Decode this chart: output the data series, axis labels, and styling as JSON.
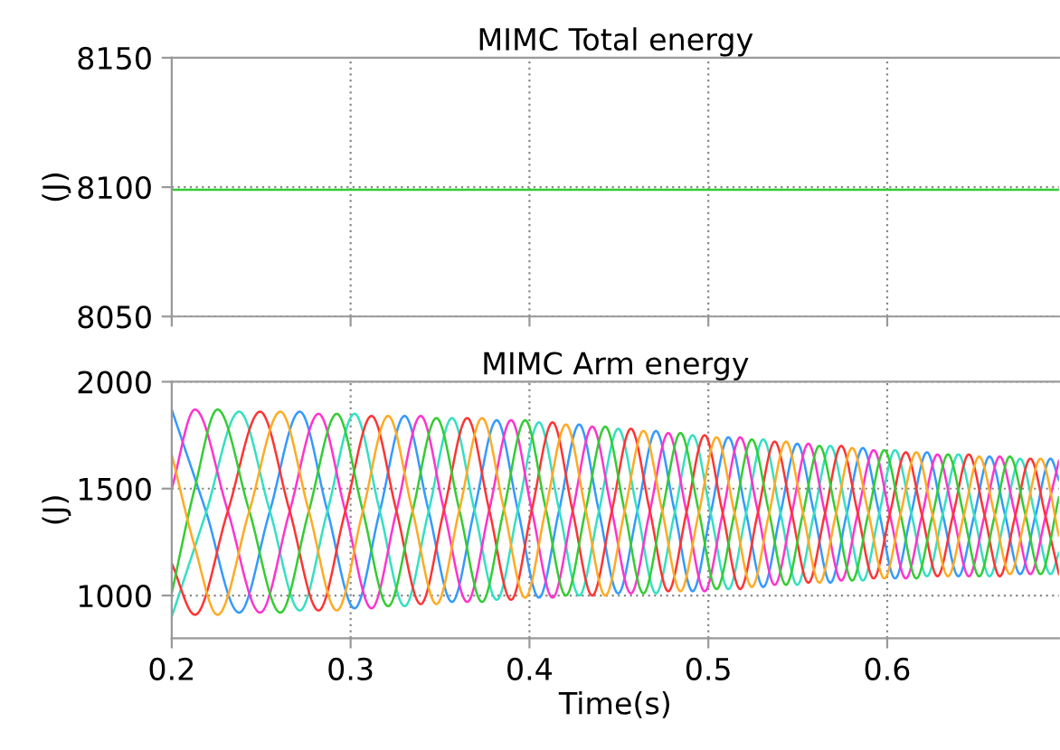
{
  "chart_data": [
    {
      "type": "line",
      "title": "MIMC Total energy",
      "ylabel": "(J)",
      "xlim": [
        0.2,
        0.696
      ],
      "xticks": [
        0.2,
        0.3,
        0.4,
        0.5,
        0.6
      ],
      "ylim": [
        8050,
        8150
      ],
      "yticks": [
        8050,
        8100,
        8150
      ],
      "grid": true,
      "tick_labels": "y",
      "series": [
        {
          "color": "#33cc33",
          "x": [
            0.2,
            0.3,
            0.4,
            0.5,
            0.6,
            0.696
          ],
          "values": [
            8099,
            8099,
            8099,
            8099,
            8099,
            8099
          ]
        }
      ]
    },
    {
      "type": "line",
      "title": "MIMC Arm energy",
      "xlabel": "Time(s)",
      "ylabel": "(J)",
      "xlim": [
        0.2,
        0.696
      ],
      "xticks": [
        0.2,
        0.3,
        0.4,
        0.5,
        0.6
      ],
      "ylim": [
        800,
        2000
      ],
      "yticks": [
        1000,
        1500,
        2000
      ],
      "grid": true,
      "series": [
        {
          "color": "#3399ff",
          "x": [
            0.2,
            0.2189,
            0.2377,
            0.2547,
            0.2716,
            0.2869,
            0.3022,
            0.3162,
            0.3302,
            0.3435,
            0.3567,
            0.3692,
            0.3817,
            0.3935,
            0.4053,
            0.4166,
            0.4278,
            0.4387,
            0.4496,
            0.4602,
            0.4707,
            0.481,
            0.4912,
            0.5012,
            0.5112,
            0.521,
            0.5307,
            0.5402,
            0.5497,
            0.559,
            0.5682,
            0.5773,
            0.5864,
            0.5954,
            0.6044,
            0.6133,
            0.6222,
            0.631,
            0.6398,
            0.6485,
            0.6572,
            0.6658,
            0.6743,
            0.6828,
            0.6913,
            0.696
          ],
          "values": [
            1870,
            1400,
            920,
            1390,
            1860,
            1400,
            940,
            1390,
            1840,
            1400,
            970,
            1400,
            1820,
            1400,
            990,
            1400,
            1800,
            1400,
            1010,
            1390,
            1770,
            1400,
            1020,
            1380,
            1740,
            1390,
            1040,
            1380,
            1710,
            1390,
            1060,
            1380,
            1690,
            1390,
            1080,
            1380,
            1670,
            1380,
            1090,
            1370,
            1650,
            1380,
            1100,
            1370,
            1640,
            1540
          ]
        },
        {
          "color": "#33e0c0",
          "x": [
            0.2,
            0.2189,
            0.2377,
            0.2547,
            0.2716,
            0.2869,
            0.3022,
            0.3162,
            0.3302,
            0.3435,
            0.3567,
            0.3692,
            0.3817,
            0.3935,
            0.4053,
            0.4166,
            0.4278,
            0.4387,
            0.4496,
            0.4602,
            0.4707,
            0.481,
            0.4912,
            0.5012,
            0.5112,
            0.521,
            0.5307,
            0.5402,
            0.5497,
            0.559,
            0.5682,
            0.5773,
            0.5864,
            0.5954,
            0.6044,
            0.6133,
            0.6222,
            0.631,
            0.6398,
            0.6485,
            0.6572,
            0.6658,
            0.6743,
            0.6828,
            0.6913,
            0.696
          ],
          "values": [
            900,
            1380,
            1860,
            1400,
            930,
            1390,
            1850,
            1400,
            950,
            1390,
            1830,
            1400,
            980,
            1400,
            1810,
            1400,
            1000,
            1390,
            1780,
            1400,
            1010,
            1380,
            1750,
            1390,
            1030,
            1380,
            1730,
            1390,
            1050,
            1380,
            1700,
            1390,
            1070,
            1380,
            1680,
            1390,
            1090,
            1380,
            1660,
            1380,
            1090,
            1370,
            1640,
            1370,
            1100,
            1200
          ]
        },
        {
          "color": "#ff33cc",
          "x": [
            0.2,
            0.213,
            0.2312,
            0.2494,
            0.2658,
            0.2821,
            0.2969,
            0.3117,
            0.3255,
            0.3392,
            0.3522,
            0.3652,
            0.3775,
            0.3897,
            0.4013,
            0.4129,
            0.424,
            0.4351,
            0.4459,
            0.4567,
            0.4672,
            0.4776,
            0.4878,
            0.4979,
            0.5079,
            0.5178,
            0.5275,
            0.5371,
            0.5465,
            0.5559,
            0.5651,
            0.5743,
            0.5834,
            0.5924,
            0.6014,
            0.6104,
            0.6193,
            0.6281,
            0.6369,
            0.6456,
            0.6543,
            0.6629,
            0.6715,
            0.68,
            0.6885,
            0.696
          ],
          "values": [
            1500,
            1870,
            1400,
            920,
            1390,
            1850,
            1400,
            940,
            1390,
            1840,
            1400,
            970,
            1400,
            1820,
            1400,
            990,
            1390,
            1790,
            1400,
            1010,
            1390,
            1760,
            1390,
            1020,
            1380,
            1740,
            1400,
            1050,
            1380,
            1710,
            1390,
            1070,
            1380,
            1680,
            1380,
            1080,
            1370,
            1660,
            1380,
            1090,
            1370,
            1650,
            1380,
            1100,
            1370,
            1630
          ]
        },
        {
          "color": "#ff3333",
          "x": [
            0.2,
            0.213,
            0.2312,
            0.2494,
            0.2658,
            0.2821,
            0.2969,
            0.3117,
            0.3255,
            0.3392,
            0.3522,
            0.3652,
            0.3775,
            0.3897,
            0.4013,
            0.4129,
            0.424,
            0.4351,
            0.4459,
            0.4567,
            0.4672,
            0.4776,
            0.4878,
            0.4979,
            0.5079,
            0.5178,
            0.5275,
            0.5371,
            0.5465,
            0.5559,
            0.5651,
            0.5743,
            0.5834,
            0.5924,
            0.6014,
            0.6104,
            0.6193,
            0.6281,
            0.6369,
            0.6456,
            0.6543,
            0.6629,
            0.6715,
            0.68,
            0.6885,
            0.696
          ],
          "values": [
            1150,
            910,
            1390,
            1860,
            1400,
            930,
            1390,
            1840,
            1400,
            960,
            1400,
            1830,
            1400,
            980,
            1400,
            1810,
            1400,
            1000,
            1390,
            1780,
            1400,
            1020,
            1390,
            1750,
            1390,
            1030,
            1380,
            1720,
            1390,
            1060,
            1380,
            1700,
            1390,
            1080,
            1380,
            1670,
            1380,
            1090,
            1380,
            1660,
            1380,
            1090,
            1370,
            1640,
            1370,
            1100
          ]
        },
        {
          "color": "#33cc33",
          "x": [
            0.2,
            0.2128,
            0.2256,
            0.2432,
            0.2607,
            0.2765,
            0.2923,
            0.3067,
            0.321,
            0.3345,
            0.348,
            0.3608,
            0.3735,
            0.3856,
            0.3976,
            0.409,
            0.4204,
            0.4314,
            0.4424,
            0.4531,
            0.4637,
            0.4741,
            0.4844,
            0.4945,
            0.5046,
            0.5145,
            0.5243,
            0.5339,
            0.5434,
            0.5528,
            0.5621,
            0.5713,
            0.5804,
            0.5894,
            0.5984,
            0.6074,
            0.6163,
            0.6252,
            0.634,
            0.6427,
            0.6514,
            0.66,
            0.6686,
            0.6772,
            0.6857,
            0.696
          ],
          "values": [
            1010,
            1500,
            1870,
            1400,
            920,
            1390,
            1850,
            1400,
            950,
            1390,
            1830,
            1400,
            970,
            1400,
            1820,
            1410,
            1000,
            1400,
            1790,
            1400,
            1010,
            1390,
            1760,
            1400,
            1030,
            1380,
            1730,
            1390,
            1050,
            1380,
            1700,
            1390,
            1070,
            1380,
            1680,
            1380,
            1080,
            1370,
            1660,
            1380,
            1090,
            1370,
            1650,
            1380,
            1100,
            1460
          ]
        },
        {
          "color": "#ffaa22",
          "x": [
            0.2,
            0.2128,
            0.2256,
            0.2432,
            0.2607,
            0.2765,
            0.2923,
            0.3067,
            0.321,
            0.3345,
            0.348,
            0.3608,
            0.3735,
            0.3856,
            0.3976,
            0.409,
            0.4204,
            0.4314,
            0.4424,
            0.4531,
            0.4637,
            0.4741,
            0.4844,
            0.4945,
            0.5046,
            0.5145,
            0.5243,
            0.5339,
            0.5434,
            0.5528,
            0.5621,
            0.5713,
            0.5804,
            0.5894,
            0.5984,
            0.6074,
            0.6163,
            0.6252,
            0.634,
            0.6427,
            0.6514,
            0.66,
            0.6686,
            0.6772,
            0.6857,
            0.696
          ],
          "values": [
            1660,
            1230,
            910,
            1390,
            1860,
            1400,
            930,
            1390,
            1840,
            1400,
            960,
            1400,
            1830,
            1410,
            990,
            1400,
            1800,
            1400,
            1000,
            1390,
            1770,
            1400,
            1020,
            1380,
            1740,
            1390,
            1040,
            1380,
            1720,
            1390,
            1060,
            1380,
            1690,
            1390,
            1080,
            1380,
            1670,
            1380,
            1090,
            1370,
            1650,
            1380,
            1100,
            1370,
            1640,
            1280
          ]
        }
      ]
    }
  ]
}
